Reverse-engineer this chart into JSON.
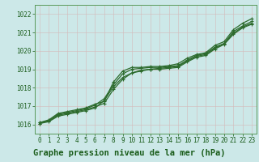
{
  "title": "Graphe pression niveau de la mer (hPa)",
  "bg_color": "#cce8e8",
  "plot_bg_color": "#cce8e8",
  "line_color": "#2d6b2d",
  "grid_color": "#c8d8c8",
  "spine_color": "#5a9a5a",
  "ylabel_values": [
    1016,
    1017,
    1018,
    1019,
    1020,
    1021,
    1022
  ],
  "xlim": [
    -0.5,
    23.5
  ],
  "ylim": [
    1015.5,
    1022.5
  ],
  "series": [
    [
      1016.1,
      1016.25,
      1016.6,
      1016.7,
      1016.8,
      1016.9,
      1017.1,
      1017.25,
      1018.3,
      1018.9,
      1019.1,
      1019.1,
      1019.15,
      1019.15,
      1019.2,
      1019.3,
      1019.6,
      1019.8,
      1019.9,
      1020.3,
      1020.5,
      1021.15,
      1021.5,
      1021.75
    ],
    [
      1016.1,
      1016.2,
      1016.55,
      1016.65,
      1016.75,
      1016.85,
      1017.05,
      1017.4,
      1018.15,
      1018.75,
      1019.0,
      1019.05,
      1019.1,
      1019.1,
      1019.15,
      1019.2,
      1019.5,
      1019.75,
      1019.85,
      1020.2,
      1020.4,
      1021.05,
      1021.35,
      1021.6
    ],
    [
      1016.05,
      1016.2,
      1016.5,
      1016.6,
      1016.7,
      1016.8,
      1016.95,
      1017.15,
      1017.9,
      1018.45,
      1018.8,
      1018.9,
      1019.0,
      1019.0,
      1019.05,
      1019.1,
      1019.4,
      1019.65,
      1019.75,
      1020.1,
      1020.35,
      1020.9,
      1021.25,
      1021.45
    ],
    [
      1016.05,
      1016.15,
      1016.45,
      1016.55,
      1016.65,
      1016.75,
      1016.9,
      1017.3,
      1018.05,
      1018.55,
      1018.8,
      1018.95,
      1019.0,
      1019.05,
      1019.1,
      1019.15,
      1019.45,
      1019.7,
      1019.8,
      1020.15,
      1020.4,
      1020.95,
      1021.3,
      1021.5
    ]
  ],
  "marker": "+",
  "marker_size": 3.5,
  "line_width": 0.9,
  "tick_fontsize": 5.5,
  "title_fontsize": 7.5,
  "title_color": "#1a5c1a",
  "tick_color": "#1a5c1a"
}
